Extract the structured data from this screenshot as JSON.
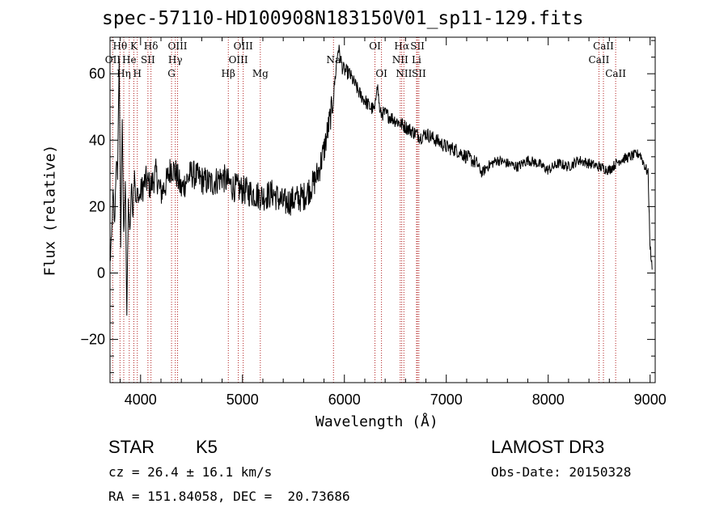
{
  "chart_data": {
    "type": "line",
    "title": "spec-57110-HD100908N183150V01_sp11-129.fits",
    "xlabel": "Wavelength (Å)",
    "ylabel": "Flux (relative)",
    "xlim": [
      3700,
      9050
    ],
    "ylim": [
      -33,
      71
    ],
    "xticks": [
      4000,
      5000,
      6000,
      7000,
      8000,
      9000
    ],
    "yticks": [
      -20,
      0,
      20,
      40,
      60
    ],
    "xtick_labels": [
      "4000",
      "5000",
      "6000",
      "7000",
      "8000",
      "9000"
    ],
    "ytick_labels": [
      "−20",
      "0",
      "20",
      "40",
      "60"
    ],
    "line_color": "#000000",
    "marker_color": "#b22222",
    "series": [
      {
        "name": "flux",
        "x": [
          3700,
          3715,
          3730,
          3745,
          3760,
          3775,
          3790,
          3805,
          3820,
          3835,
          3850,
          3865,
          3880,
          3895,
          3910,
          3925,
          3940,
          3955,
          3970,
          3985,
          4000,
          4050,
          4100,
          4150,
          4200,
          4250,
          4300,
          4350,
          4400,
          4450,
          4500,
          4600,
          4700,
          4800,
          4900,
          5000,
          5100,
          5200,
          5300,
          5400,
          5500,
          5600,
          5700,
          5750,
          5800,
          5850,
          5880,
          5900,
          5920,
          5940,
          5960,
          5980,
          6000,
          6050,
          6100,
          6150,
          6200,
          6250,
          6300,
          6320,
          6350,
          6400,
          6450,
          6500,
          6550,
          6600,
          6650,
          6700,
          6750,
          6800,
          6900,
          7000,
          7100,
          7200,
          7300,
          7350,
          7400,
          7500,
          7600,
          7700,
          7800,
          7900,
          8000,
          8100,
          8200,
          8300,
          8400,
          8500,
          8600,
          8700,
          8800,
          8900,
          8950,
          8980,
          9000,
          9020
        ],
        "y": [
          3,
          10,
          24,
          14,
          33,
          30,
          66,
          8,
          48,
          10,
          28,
          -13,
          22,
          12,
          27,
          18,
          32,
          20,
          25,
          22,
          24,
          28,
          26,
          30,
          24,
          27,
          32,
          30,
          25,
          28,
          30,
          28,
          27,
          29,
          26,
          25,
          24,
          23,
          24,
          21,
          22,
          23,
          27,
          31,
          37,
          45,
          50,
          56,
          62,
          68,
          65,
          62,
          61,
          60,
          57,
          54,
          52,
          50,
          49,
          58,
          48,
          48,
          47,
          46,
          45,
          44,
          43,
          42,
          41,
          42,
          40,
          38,
          37,
          35,
          33,
          30,
          32,
          34,
          33,
          32,
          34,
          33,
          31,
          33,
          32,
          34,
          33,
          32,
          31,
          34,
          35,
          36,
          32,
          30,
          8,
          1
        ]
      }
    ],
    "spectral_lines": [
      {
        "name": "Hθ",
        "wavelength": 3798,
        "row": 1
      },
      {
        "name": "OII",
        "wavelength": 3727,
        "row": 2
      },
      {
        "name": "Hη",
        "wavelength": 3835,
        "row": 3
      },
      {
        "name": "K",
        "wavelength": 3934,
        "row": 1
      },
      {
        "name": "He",
        "wavelength": 3889,
        "row": 2
      },
      {
        "name": "H",
        "wavelength": 3968,
        "row": 3
      },
      {
        "name": "Hδ",
        "wavelength": 4102,
        "row": 1
      },
      {
        "name": "SII",
        "wavelength": 4072,
        "row": 2
      },
      {
        "name": "OIII",
        "wavelength": 4363,
        "row": 1
      },
      {
        "name": "Hγ",
        "wavelength": 4341,
        "row": 2
      },
      {
        "name": "G",
        "wavelength": 4304,
        "row": 3
      },
      {
        "name": "OIII",
        "wavelength": 5007,
        "row": 1
      },
      {
        "name": "OIII",
        "wavelength": 4959,
        "row": 2
      },
      {
        "name": "Hβ",
        "wavelength": 4861,
        "row": 3
      },
      {
        "name": "Mg",
        "wavelength": 5175,
        "row": 3
      },
      {
        "name": "Na",
        "wavelength": 5893,
        "row": 2
      },
      {
        "name": "OI",
        "wavelength": 6300,
        "row": 1
      },
      {
        "name": "OI",
        "wavelength": 6364,
        "row": 3
      },
      {
        "name": "Hα",
        "wavelength": 6563,
        "row": 1
      },
      {
        "name": "NII",
        "wavelength": 6548,
        "row": 2
      },
      {
        "name": "NII",
        "wavelength": 6584,
        "row": 3
      },
      {
        "name": "SII",
        "wavelength": 6717,
        "row": 1
      },
      {
        "name": "Li",
        "wavelength": 6708,
        "row": 2
      },
      {
        "name": "SII",
        "wavelength": 6731,
        "row": 3
      },
      {
        "name": "CaII",
        "wavelength": 8542,
        "row": 1
      },
      {
        "name": "CaII",
        "wavelength": 8498,
        "row": 2
      },
      {
        "name": "CaII",
        "wavelength": 8662,
        "row": 3
      }
    ]
  },
  "info": {
    "class": "STAR",
    "subclass": "K5",
    "survey": "LAMOST DR3",
    "cz": "cz = 26.4 ± 16.1 km/s",
    "obs_date": "Obs-Date: 20150328",
    "coords": "RA = 151.84058, DEC =  20.73686"
  }
}
